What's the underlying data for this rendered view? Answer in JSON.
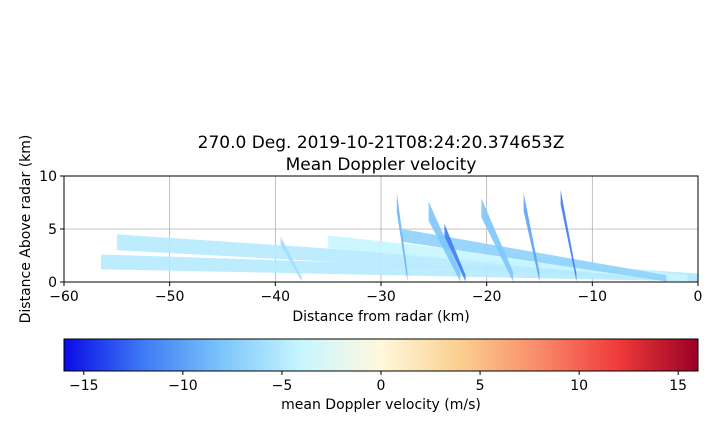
{
  "chart_data": {
    "type": "heatmap",
    "title": "270.0 Deg. 2019-10-21T08:24:20.374653Z",
    "subtitle": "Mean Doppler velocity",
    "xlabel": "Distance from radar (km)",
    "ylabel": "Distance Above radar  (km)",
    "xlim": [
      -60,
      0
    ],
    "ylim": [
      0,
      10
    ],
    "xticks": [
      "−60",
      "−50",
      "−40",
      "−30",
      "−20",
      "−10",
      "0"
    ],
    "yticks": [
      "0",
      "5",
      "10"
    ],
    "grid": true,
    "colorbar": {
      "label": "mean Doppler velocity (m/s)",
      "range": [
        -16,
        16
      ],
      "ticks": [
        "−15",
        "−10",
        "−5",
        "0",
        "5",
        "10",
        "15"
      ],
      "colormap": [
        "#0a0ae6",
        "#3e7bf5",
        "#7cc6fb",
        "#c8f6ff",
        "#fff8dc",
        "#fbcf8f",
        "#f98a6a",
        "#ef3a3a",
        "#9a0025"
      ]
    },
    "bands": [
      {
        "x_start": -56.5,
        "x_end": 0,
        "y_at_start": 1.2,
        "thickness": 1.4,
        "velocity": -5
      },
      {
        "x_start": -55,
        "x_end": 0,
        "y_at_start": 3.0,
        "thickness": 1.5,
        "velocity": -5
      },
      {
        "x_start": -39.5,
        "x_end": -37.5,
        "y_at_start": 3.5,
        "thickness": 0.8,
        "velocity": -6
      },
      {
        "x_start": -35,
        "x_end": -1,
        "y_at_start": 3.2,
        "thickness": 1.2,
        "velocity": -4
      },
      {
        "x_start": -28,
        "x_end": -3,
        "y_at_start": 3.8,
        "thickness": 1.2,
        "velocity": -7
      },
      {
        "x_start": -28.5,
        "x_end": -27.5,
        "y_at_start": 6.6,
        "thickness": 1.8,
        "velocity": -9
      },
      {
        "x_start": -25.5,
        "x_end": -22.5,
        "y_at_start": 5.8,
        "thickness": 1.8,
        "velocity": -8
      },
      {
        "x_start": -20.5,
        "x_end": -17.5,
        "y_at_start": 6.1,
        "thickness": 1.8,
        "velocity": -8
      },
      {
        "x_start": -16.5,
        "x_end": -15,
        "y_at_start": 6.7,
        "thickness": 1.7,
        "velocity": -10
      },
      {
        "x_start": -13,
        "x_end": -11.5,
        "y_at_start": 7.3,
        "thickness": 1.4,
        "velocity": -12
      },
      {
        "x_start": -24,
        "x_end": -22,
        "y_at_start": 4.3,
        "thickness": 1.2,
        "velocity": -12
      }
    ]
  }
}
